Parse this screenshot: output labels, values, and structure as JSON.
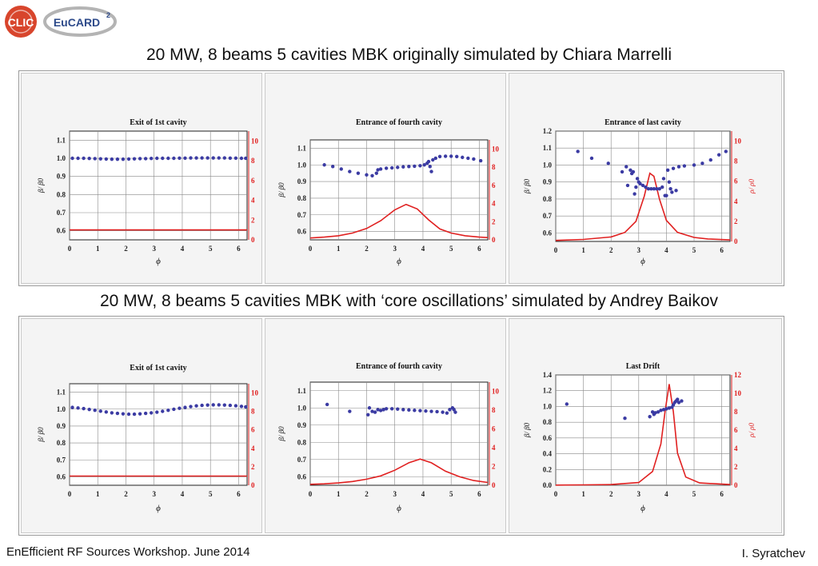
{
  "logos": {
    "clic_text": "CLIC",
    "eucard_text": "EuCARD",
    "eucard_sup": "2"
  },
  "headings": {
    "top": "20 MW, 8 beams 5 cavities MBK originally simulated by Chiara Marrelli",
    "bottom": "20 MW, 8 beams 5 cavities MBK with ‘core oscillations’ simulated by Andrey Baikov"
  },
  "footer": {
    "left": "EnEfficient RF Sources Workshop. June 2014",
    "right": "I. Syratchev"
  },
  "colors": {
    "dots": "#3b3ba3",
    "curve": "#e02020",
    "right_axis": "#e02020",
    "grid": "#888888"
  },
  "chart_data": [
    {
      "type": "scatter",
      "title": "Exit of 1st cavity",
      "xlabel": "ϕ",
      "ylabel": "β/ β0",
      "y2label": "",
      "xlim": [
        0,
        6.3
      ],
      "ylim": [
        0.55,
        1.15
      ],
      "y2lim": [
        0,
        11
      ],
      "xticks": [
        0,
        1,
        2,
        3,
        4,
        5,
        6
      ],
      "yticks": [
        0.6,
        0.7,
        0.8,
        0.9,
        1.0,
        1.1
      ],
      "y2ticks": [
        0,
        2,
        4,
        6,
        8,
        10
      ],
      "dots": [
        [
          0.1,
          1.0
        ],
        [
          0.3,
          1.0
        ],
        [
          0.5,
          1.0
        ],
        [
          0.7,
          0.999
        ],
        [
          0.9,
          0.998
        ],
        [
          1.1,
          0.997
        ],
        [
          1.3,
          0.996
        ],
        [
          1.5,
          0.995
        ],
        [
          1.7,
          0.995
        ],
        [
          1.9,
          0.995
        ],
        [
          2.1,
          0.996
        ],
        [
          2.3,
          0.997
        ],
        [
          2.5,
          0.998
        ],
        [
          2.7,
          0.998
        ],
        [
          2.9,
          0.999
        ],
        [
          3.1,
          1.0
        ],
        [
          3.3,
          1.0
        ],
        [
          3.5,
          1.0
        ],
        [
          3.7,
          1.0
        ],
        [
          3.9,
          1.001
        ],
        [
          4.1,
          1.001
        ],
        [
          4.3,
          1.002
        ],
        [
          4.5,
          1.002
        ],
        [
          4.7,
          1.002
        ],
        [
          4.9,
          1.002
        ],
        [
          5.1,
          1.002
        ],
        [
          5.3,
          1.002
        ],
        [
          5.5,
          1.002
        ],
        [
          5.7,
          1.001
        ],
        [
          5.9,
          1.001
        ],
        [
          6.1,
          1.0
        ],
        [
          6.25,
          1.0
        ]
      ],
      "curve": [
        [
          0,
          1.0
        ],
        [
          6.3,
          1.0
        ]
      ]
    },
    {
      "type": "scatter",
      "title": "Entrance of fourth cavity",
      "xlabel": "ϕ",
      "ylabel": "β/ β0",
      "y2label": "",
      "xlim": [
        0,
        6.3
      ],
      "ylim": [
        0.55,
        1.15
      ],
      "y2lim": [
        0,
        11
      ],
      "xticks": [
        0,
        1,
        2,
        3,
        4,
        5,
        6
      ],
      "yticks": [
        0.6,
        0.7,
        0.8,
        0.9,
        1.0,
        1.1
      ],
      "y2ticks": [
        0,
        2,
        4,
        6,
        8,
        10
      ],
      "dots": [
        [
          0.5,
          1.0
        ],
        [
          0.8,
          0.99
        ],
        [
          1.1,
          0.975
        ],
        [
          1.4,
          0.96
        ],
        [
          1.7,
          0.95
        ],
        [
          2.0,
          0.94
        ],
        [
          2.2,
          0.935
        ],
        [
          2.35,
          0.95
        ],
        [
          2.4,
          0.97
        ],
        [
          2.5,
          0.975
        ],
        [
          2.7,
          0.98
        ],
        [
          2.9,
          0.982
        ],
        [
          3.1,
          0.985
        ],
        [
          3.3,
          0.988
        ],
        [
          3.5,
          0.99
        ],
        [
          3.7,
          0.992
        ],
        [
          3.9,
          0.995
        ],
        [
          4.05,
          1.0
        ],
        [
          4.15,
          1.01
        ],
        [
          4.2,
          1.02
        ],
        [
          4.25,
          0.99
        ],
        [
          4.3,
          0.96
        ],
        [
          4.35,
          1.03
        ],
        [
          4.45,
          1.04
        ],
        [
          4.6,
          1.05
        ],
        [
          4.8,
          1.052
        ],
        [
          5.0,
          1.052
        ],
        [
          5.2,
          1.05
        ],
        [
          5.4,
          1.045
        ],
        [
          5.6,
          1.04
        ],
        [
          5.8,
          1.035
        ],
        [
          6.05,
          1.025
        ]
      ],
      "curve": [
        [
          0,
          0.2
        ],
        [
          0.5,
          0.3
        ],
        [
          1.0,
          0.45
        ],
        [
          1.5,
          0.75
        ],
        [
          2.0,
          1.25
        ],
        [
          2.5,
          2.1
        ],
        [
          3.0,
          3.3
        ],
        [
          3.4,
          3.9
        ],
        [
          3.8,
          3.4
        ],
        [
          4.2,
          2.2
        ],
        [
          4.6,
          1.2
        ],
        [
          5.0,
          0.75
        ],
        [
          5.5,
          0.45
        ],
        [
          6.0,
          0.3
        ],
        [
          6.3,
          0.25
        ]
      ]
    },
    {
      "type": "scatter",
      "title": "Entrance of last cavity",
      "xlabel": "ϕ",
      "ylabel": "β/ β0",
      "y2label": "ρ/ ρ0",
      "xlim": [
        0,
        6.3
      ],
      "ylim": [
        0.55,
        1.2
      ],
      "y2lim": [
        0,
        11
      ],
      "xticks": [
        0,
        1,
        2,
        3,
        4,
        5,
        6
      ],
      "yticks": [
        0.6,
        0.7,
        0.8,
        0.9,
        1.0,
        1.1,
        1.2
      ],
      "y2ticks": [
        0,
        2,
        4,
        6,
        8,
        10
      ],
      "dots": [
        [
          0.8,
          1.08
        ],
        [
          1.3,
          1.04
        ],
        [
          1.9,
          1.01
        ],
        [
          2.4,
          0.96
        ],
        [
          2.55,
          0.99
        ],
        [
          2.6,
          0.88
        ],
        [
          2.7,
          0.97
        ],
        [
          2.75,
          0.95
        ],
        [
          2.8,
          0.96
        ],
        [
          2.85,
          0.83
        ],
        [
          2.9,
          0.87
        ],
        [
          2.95,
          0.92
        ],
        [
          3.0,
          0.9
        ],
        [
          3.05,
          0.89
        ],
        [
          3.15,
          0.88
        ],
        [
          3.25,
          0.87
        ],
        [
          3.35,
          0.86
        ],
        [
          3.45,
          0.86
        ],
        [
          3.55,
          0.86
        ],
        [
          3.65,
          0.86
        ],
        [
          3.75,
          0.86
        ],
        [
          3.85,
          0.87
        ],
        [
          3.9,
          0.92
        ],
        [
          3.95,
          0.82
        ],
        [
          4.0,
          0.82
        ],
        [
          4.05,
          0.97
        ],
        [
          4.1,
          0.9
        ],
        [
          4.15,
          0.86
        ],
        [
          4.2,
          0.84
        ],
        [
          4.25,
          0.98
        ],
        [
          4.35,
          0.85
        ],
        [
          4.45,
          0.99
        ],
        [
          4.65,
          0.995
        ],
        [
          5.0,
          1.0
        ],
        [
          5.3,
          1.01
        ],
        [
          5.6,
          1.03
        ],
        [
          5.9,
          1.06
        ],
        [
          6.15,
          1.08
        ]
      ],
      "curve": [
        [
          0,
          0.1
        ],
        [
          1.0,
          0.2
        ],
        [
          2.0,
          0.45
        ],
        [
          2.5,
          0.9
        ],
        [
          2.9,
          2.0
        ],
        [
          3.2,
          4.5
        ],
        [
          3.4,
          6.8
        ],
        [
          3.55,
          6.5
        ],
        [
          3.75,
          4.2
        ],
        [
          4.0,
          2.1
        ],
        [
          4.4,
          0.9
        ],
        [
          5.0,
          0.4
        ],
        [
          5.5,
          0.25
        ],
        [
          6.3,
          0.15
        ]
      ]
    },
    {
      "type": "scatter",
      "title": "Exit of 1st cavity",
      "xlabel": "ϕ",
      "ylabel": "β/ β0",
      "y2label": "",
      "xlim": [
        0,
        6.3
      ],
      "ylim": [
        0.55,
        1.15
      ],
      "y2lim": [
        0,
        11
      ],
      "xticks": [
        0,
        1,
        2,
        3,
        4,
        5,
        6
      ],
      "yticks": [
        0.6,
        0.7,
        0.8,
        0.9,
        1.0,
        1.1
      ],
      "y2ticks": [
        0,
        2,
        4,
        6,
        8,
        10
      ],
      "dots": [
        [
          0.1,
          1.01
        ],
        [
          0.3,
          1.007
        ],
        [
          0.5,
          1.003
        ],
        [
          0.7,
          0.998
        ],
        [
          0.9,
          0.993
        ],
        [
          1.1,
          0.988
        ],
        [
          1.3,
          0.983
        ],
        [
          1.5,
          0.978
        ],
        [
          1.7,
          0.975
        ],
        [
          1.9,
          0.972
        ],
        [
          2.1,
          0.97
        ],
        [
          2.3,
          0.97
        ],
        [
          2.5,
          0.972
        ],
        [
          2.7,
          0.975
        ],
        [
          2.9,
          0.978
        ],
        [
          3.1,
          0.982
        ],
        [
          3.3,
          0.987
        ],
        [
          3.5,
          0.993
        ],
        [
          3.7,
          0.999
        ],
        [
          3.9,
          1.005
        ],
        [
          4.1,
          1.01
        ],
        [
          4.3,
          1.015
        ],
        [
          4.5,
          1.019
        ],
        [
          4.7,
          1.022
        ],
        [
          4.9,
          1.024
        ],
        [
          5.1,
          1.025
        ],
        [
          5.3,
          1.025
        ],
        [
          5.5,
          1.024
        ],
        [
          5.7,
          1.022
        ],
        [
          5.9,
          1.02
        ],
        [
          6.1,
          1.016
        ],
        [
          6.25,
          1.013
        ]
      ],
      "curve": [
        [
          0,
          1.0
        ],
        [
          6.3,
          1.0
        ]
      ]
    },
    {
      "type": "scatter",
      "title": "Entrance of fourth cavity",
      "xlabel": "ϕ",
      "ylabel": "β/ β0",
      "y2label": "",
      "xlim": [
        0,
        6.3
      ],
      "ylim": [
        0.55,
        1.15
      ],
      "y2lim": [
        0,
        11
      ],
      "xticks": [
        0,
        1,
        2,
        3,
        4,
        5,
        6
      ],
      "yticks": [
        0.6,
        0.7,
        0.8,
        0.9,
        1.0,
        1.1
      ],
      "y2ticks": [
        0,
        2,
        4,
        6,
        8,
        10
      ],
      "dots": [
        [
          0.6,
          1.02
        ],
        [
          1.4,
          0.98
        ],
        [
          2.05,
          0.96
        ],
        [
          2.1,
          1.0
        ],
        [
          2.2,
          0.98
        ],
        [
          2.3,
          0.975
        ],
        [
          2.4,
          0.99
        ],
        [
          2.5,
          0.985
        ],
        [
          2.6,
          0.99
        ],
        [
          2.7,
          0.995
        ],
        [
          2.9,
          0.995
        ],
        [
          3.1,
          0.993
        ],
        [
          3.3,
          0.99
        ],
        [
          3.5,
          0.988
        ],
        [
          3.7,
          0.986
        ],
        [
          3.9,
          0.984
        ],
        [
          4.1,
          0.982
        ],
        [
          4.3,
          0.98
        ],
        [
          4.5,
          0.978
        ],
        [
          4.7,
          0.975
        ],
        [
          4.85,
          0.97
        ],
        [
          4.95,
          0.99
        ],
        [
          5.05,
          1.0
        ],
        [
          5.1,
          0.99
        ],
        [
          5.15,
          0.975
        ]
      ],
      "curve": [
        [
          0,
          0.1
        ],
        [
          0.5,
          0.15
        ],
        [
          1.0,
          0.25
        ],
        [
          1.5,
          0.4
        ],
        [
          2.0,
          0.65
        ],
        [
          2.5,
          1.0
        ],
        [
          3.0,
          1.6
        ],
        [
          3.5,
          2.4
        ],
        [
          3.9,
          2.8
        ],
        [
          4.3,
          2.4
        ],
        [
          4.8,
          1.5
        ],
        [
          5.3,
          0.9
        ],
        [
          5.8,
          0.5
        ],
        [
          6.3,
          0.3
        ]
      ]
    },
    {
      "type": "scatter",
      "title": "Last Drift",
      "xlabel": "ϕ",
      "ylabel": "β/ β0",
      "y2label": "ρ/ ρ0",
      "xlim": [
        0,
        6.3
      ],
      "ylim": [
        0.0,
        1.4
      ],
      "y2lim": [
        0,
        12
      ],
      "xticks": [
        0,
        1,
        2,
        3,
        4,
        5,
        6
      ],
      "yticks": [
        0.0,
        0.2,
        0.4,
        0.6,
        0.8,
        1.0,
        1.2,
        1.4
      ],
      "y2ticks": [
        0,
        2,
        4,
        6,
        8,
        10,
        12
      ],
      "dots": [
        [
          0.4,
          1.03
        ],
        [
          2.5,
          0.85
        ],
        [
          3.4,
          0.87
        ],
        [
          3.5,
          0.93
        ],
        [
          3.55,
          0.9
        ],
        [
          3.6,
          0.92
        ],
        [
          3.7,
          0.93
        ],
        [
          3.8,
          0.95
        ],
        [
          3.9,
          0.96
        ],
        [
          4.0,
          0.97
        ],
        [
          4.1,
          0.98
        ],
        [
          4.2,
          0.99
        ],
        [
          4.25,
          1.02
        ],
        [
          4.3,
          1.05
        ],
        [
          4.35,
          1.07
        ],
        [
          4.4,
          1.09
        ],
        [
          4.45,
          1.05
        ],
        [
          4.55,
          1.07
        ]
      ],
      "curve": [
        [
          0,
          0.02
        ],
        [
          1.0,
          0.04
        ],
        [
          2.0,
          0.08
        ],
        [
          3.0,
          0.3
        ],
        [
          3.5,
          1.5
        ],
        [
          3.8,
          4.5
        ],
        [
          3.95,
          8.0
        ],
        [
          4.1,
          11.0
        ],
        [
          4.25,
          8.0
        ],
        [
          4.4,
          3.5
        ],
        [
          4.7,
          0.9
        ],
        [
          5.2,
          0.25
        ],
        [
          6.3,
          0.08
        ]
      ]
    }
  ]
}
